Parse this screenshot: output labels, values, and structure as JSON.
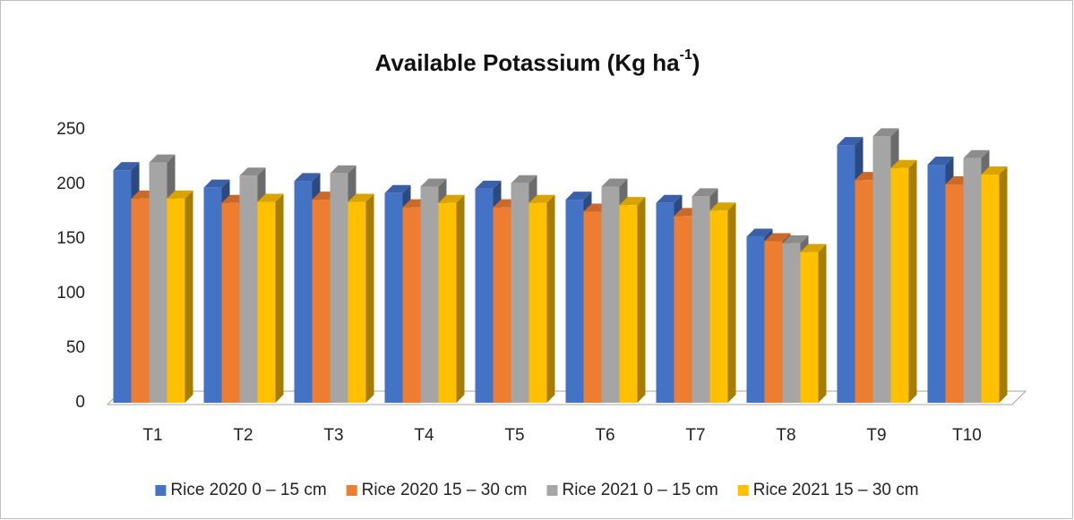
{
  "chart_data": {
    "type": "bar3d",
    "title_parts": [
      "Available Potassium (Kg ha",
      "-1",
      ")"
    ],
    "categories": [
      "T1",
      "T2",
      "T3",
      "T4",
      "T5",
      "T6",
      "T7",
      "T8",
      "T9",
      "T10"
    ],
    "series": [
      {
        "name": "Rice 2020 0 – 15 cm",
        "color": "#4472c4",
        "values": [
          213,
          197,
          203,
          192,
          196,
          186,
          183,
          152,
          236,
          218
        ]
      },
      {
        "name": "Rice 2020 15 – 30 cm",
        "color": "#ed7d31",
        "values": [
          187,
          183,
          186,
          179,
          179,
          175,
          171,
          148,
          204,
          200
        ]
      },
      {
        "name": "Rice 2021 0 – 15 cm",
        "color": "#a5a5a5",
        "values": [
          220,
          208,
          210,
          198,
          201,
          198,
          189,
          146,
          244,
          224
        ]
      },
      {
        "name": "Rice 2021 15 – 30 cm",
        "color": "#ffc000",
        "values": [
          187,
          184,
          184,
          183,
          183,
          181,
          176,
          138,
          215,
          209
        ]
      }
    ],
    "ylim": [
      0,
      250
    ],
    "yticks": [
      0,
      50,
      100,
      150,
      200,
      250
    ],
    "grid": false,
    "legend": "bottom"
  }
}
